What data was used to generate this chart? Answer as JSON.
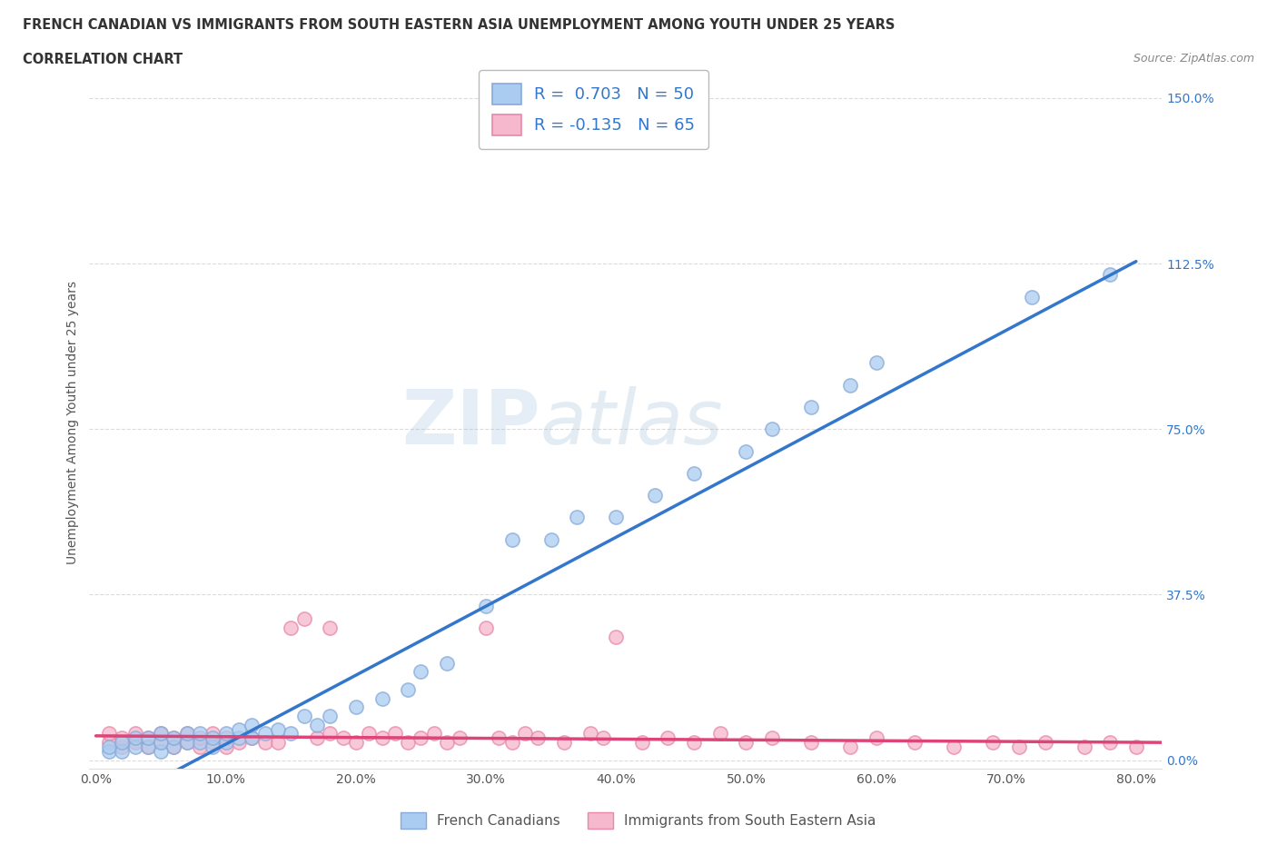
{
  "title_line1": "FRENCH CANADIAN VS IMMIGRANTS FROM SOUTH EASTERN ASIA UNEMPLOYMENT AMONG YOUTH UNDER 25 YEARS",
  "title_line2": "CORRELATION CHART",
  "source_text": "Source: ZipAtlas.com",
  "ylabel": "Unemployment Among Youth under 25 years",
  "xlim": [
    -0.005,
    0.82
  ],
  "ylim": [
    -0.02,
    1.55
  ],
  "xticks": [
    0.0,
    0.1,
    0.2,
    0.3,
    0.4,
    0.5,
    0.6,
    0.7,
    0.8
  ],
  "xticklabels": [
    "0.0%",
    "10.0%",
    "20.0%",
    "30.0%",
    "40.0%",
    "50.0%",
    "60.0%",
    "70.0%",
    "80.0%"
  ],
  "yticks": [
    0.0,
    0.375,
    0.75,
    1.125,
    1.5
  ],
  "yticklabels": [
    "0.0%",
    "37.5%",
    "75.0%",
    "112.5%",
    "150.0%"
  ],
  "blue_fill": "#aaccf0",
  "blue_edge": "#88aad8",
  "pink_fill": "#f5b8cc",
  "pink_edge": "#e888aa",
  "blue_line": "#3377cc",
  "pink_line": "#dd4477",
  "R_blue": 0.703,
  "N_blue": 50,
  "R_pink": -0.135,
  "N_pink": 65,
  "legend_label_blue": "French Canadians",
  "legend_label_pink": "Immigrants from South Eastern Asia",
  "watermark_zip": "ZIP",
  "watermark_atlas": "atlas",
  "grid_color": "#cccccc",
  "bg_color": "#ffffff",
  "title_color": "#333333",
  "axis_color": "#555555",
  "blue_scatter_x": [
    0.01,
    0.01,
    0.02,
    0.02,
    0.03,
    0.03,
    0.04,
    0.04,
    0.05,
    0.05,
    0.05,
    0.06,
    0.06,
    0.07,
    0.07,
    0.08,
    0.08,
    0.09,
    0.09,
    0.1,
    0.1,
    0.11,
    0.11,
    0.12,
    0.12,
    0.13,
    0.14,
    0.15,
    0.16,
    0.17,
    0.18,
    0.2,
    0.22,
    0.24,
    0.25,
    0.27,
    0.3,
    0.32,
    0.35,
    0.37,
    0.4,
    0.43,
    0.46,
    0.5,
    0.52,
    0.55,
    0.58,
    0.6,
    0.72,
    0.78
  ],
  "blue_scatter_y": [
    0.02,
    0.03,
    0.02,
    0.04,
    0.03,
    0.05,
    0.03,
    0.05,
    0.02,
    0.04,
    0.06,
    0.03,
    0.05,
    0.04,
    0.06,
    0.04,
    0.06,
    0.03,
    0.05,
    0.04,
    0.06,
    0.05,
    0.07,
    0.05,
    0.08,
    0.06,
    0.07,
    0.06,
    0.1,
    0.08,
    0.1,
    0.12,
    0.14,
    0.16,
    0.2,
    0.22,
    0.35,
    0.5,
    0.5,
    0.55,
    0.55,
    0.6,
    0.65,
    0.7,
    0.75,
    0.8,
    0.85,
    0.9,
    1.05,
    1.1
  ],
  "pink_scatter_x": [
    0.01,
    0.01,
    0.02,
    0.02,
    0.03,
    0.03,
    0.04,
    0.04,
    0.05,
    0.05,
    0.06,
    0.06,
    0.07,
    0.07,
    0.08,
    0.08,
    0.09,
    0.09,
    0.1,
    0.1,
    0.11,
    0.12,
    0.13,
    0.14,
    0.15,
    0.16,
    0.17,
    0.18,
    0.18,
    0.19,
    0.2,
    0.21,
    0.22,
    0.23,
    0.24,
    0.25,
    0.26,
    0.27,
    0.28,
    0.3,
    0.31,
    0.32,
    0.33,
    0.34,
    0.36,
    0.38,
    0.39,
    0.4,
    0.42,
    0.44,
    0.46,
    0.48,
    0.5,
    0.52,
    0.55,
    0.58,
    0.6,
    0.63,
    0.66,
    0.69,
    0.71,
    0.73,
    0.76,
    0.78,
    0.8
  ],
  "pink_scatter_y": [
    0.04,
    0.06,
    0.03,
    0.05,
    0.04,
    0.06,
    0.03,
    0.05,
    0.04,
    0.06,
    0.03,
    0.05,
    0.04,
    0.06,
    0.03,
    0.05,
    0.04,
    0.06,
    0.03,
    0.05,
    0.04,
    0.05,
    0.04,
    0.04,
    0.3,
    0.32,
    0.05,
    0.06,
    0.3,
    0.05,
    0.04,
    0.06,
    0.05,
    0.06,
    0.04,
    0.05,
    0.06,
    0.04,
    0.05,
    0.3,
    0.05,
    0.04,
    0.06,
    0.05,
    0.04,
    0.06,
    0.05,
    0.28,
    0.04,
    0.05,
    0.04,
    0.06,
    0.04,
    0.05,
    0.04,
    0.03,
    0.05,
    0.04,
    0.03,
    0.04,
    0.03,
    0.04,
    0.03,
    0.04,
    0.03
  ],
  "blue_line_x": [
    0.0,
    0.8
  ],
  "blue_line_y": [
    -0.12,
    1.13
  ],
  "pink_line_x": [
    0.0,
    0.82
  ],
  "pink_line_y": [
    0.055,
    0.04
  ]
}
